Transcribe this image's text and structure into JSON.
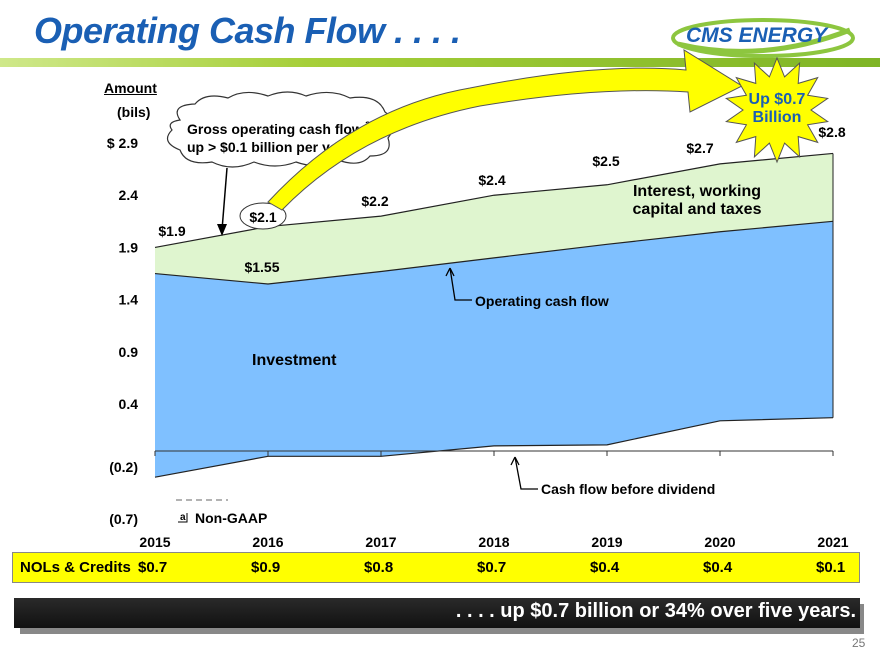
{
  "header": {
    "title": "Operating Cash Flow . . . .",
    "logo_text": "CMS ENERGY"
  },
  "axis": {
    "ylabel_line1": "Amount",
    "ylabel_line2": "(bils)"
  },
  "chart_data": {
    "type": "area",
    "x": [
      "2015",
      "2016",
      "2017",
      "2018",
      "2019",
      "2020",
      "2021"
    ],
    "y_ticks": [
      "$ 2.9",
      "2.4",
      "1.9",
      "1.4",
      "0.9",
      "0.4",
      "(0.2)",
      "(0.7)"
    ],
    "ylim": [
      -0.7,
      2.9
    ],
    "series": [
      {
        "name": "Cash flow before dividend",
        "values": [
          -0.3,
          -0.1,
          -0.1,
          0.0,
          0.01,
          0.24,
          0.27
        ]
      },
      {
        "name": "Operating cash flow",
        "values": [
          1.65,
          1.55,
          1.67,
          1.8,
          1.93,
          2.05,
          2.15
        ]
      },
      {
        "name": "Gross operating cash flow",
        "values": [
          1.9,
          2.1,
          2.2,
          2.4,
          2.5,
          2.7,
          2.8
        ]
      }
    ],
    "top_labels": [
      {
        "x": "2015",
        "text": "$1.9"
      },
      {
        "x": "2016",
        "text": "$2.1"
      },
      {
        "x": "2017",
        "text": "$2.2"
      },
      {
        "x": "2018",
        "text": "$2.4"
      },
      {
        "x": "2019",
        "text": "$2.5"
      },
      {
        "x": "2020",
        "text": "$2.7"
      },
      {
        "x": "2021",
        "text": "$2.8"
      }
    ],
    "ocf_label": {
      "x": "2016",
      "text": "$1.55"
    },
    "region_labels": {
      "investment": "Investment",
      "interest_line1": "Interest, working",
      "interest_line2": "capital and taxes"
    },
    "annotations": {
      "callout_line1": "Gross operating cash flow",
      "callout_sup": "a",
      "callout_line2": "up > $0.1 billion per year",
      "starburst_line1": "Up $0.7",
      "starburst_line2": "Billion",
      "ocf_pointer": "Operating cash flow",
      "cfbd_pointer": "Cash flow before dividend",
      "footnote_mark": "a",
      "footnote_text": "Non-GAAP"
    },
    "colors": {
      "investment": "#7fc0ff",
      "interest": "#dff5cf",
      "accent_yellow": "#ffff00",
      "title_blue": "#1a5fb4"
    }
  },
  "nols": {
    "label": "NOLs & Credits",
    "values": [
      "$0.7",
      "$0.9",
      "$0.8",
      "$0.7",
      "$0.4",
      "$0.4",
      "$0.1"
    ]
  },
  "footer": {
    "banner": ". . . . up $0.7 billion or 34% over five years.",
    "page_number": "25"
  }
}
